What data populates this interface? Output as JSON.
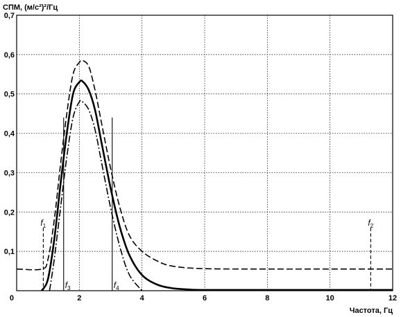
{
  "chart_data": {
    "type": "line",
    "title": "",
    "ylabel": "СПМ, (м/с²)²/Гц",
    "xlabel": "Частота, Гц",
    "xlim": [
      0,
      12
    ],
    "ylim": [
      0,
      0.7
    ],
    "grid": true,
    "x_ticks": [
      "0",
      "2",
      "4",
      "6",
      "8",
      "10",
      "12"
    ],
    "y_ticks": [
      "0,1",
      "0,2",
      "0,3",
      "0,4",
      "0,5",
      "0,6",
      "0,7"
    ],
    "series": [
      {
        "style": "dashed",
        "x": [
          0,
          0.8,
          1.0,
          1.2,
          1.4,
          1.6,
          1.8,
          2.0,
          2.1,
          2.3,
          2.5,
          2.7,
          3.0,
          3.3,
          3.6,
          4.0,
          4.5,
          5.0,
          6.0,
          8.0,
          10.0,
          12.0
        ],
        "y": [
          0.055,
          0.055,
          0.08,
          0.18,
          0.32,
          0.45,
          0.55,
          0.58,
          0.585,
          0.57,
          0.51,
          0.43,
          0.31,
          0.21,
          0.14,
          0.1,
          0.075,
          0.062,
          0.056,
          0.055,
          0.055,
          0.055
        ]
      },
      {
        "style": "solid",
        "x": [
          0.8,
          1.0,
          1.2,
          1.4,
          1.6,
          1.8,
          2.0,
          2.1,
          2.3,
          2.5,
          2.7,
          3.0,
          3.3,
          3.6,
          4.0,
          4.5,
          5.0,
          5.5,
          6.0,
          8.0,
          10.0,
          12.0
        ],
        "y": [
          0.0,
          0.03,
          0.13,
          0.27,
          0.4,
          0.5,
          0.53,
          0.532,
          0.51,
          0.46,
          0.38,
          0.26,
          0.16,
          0.09,
          0.04,
          0.015,
          0.006,
          0.003,
          0.002,
          0.002,
          0.002,
          0.002
        ]
      },
      {
        "style": "dash-dot",
        "x": [
          1.05,
          1.2,
          1.4,
          1.6,
          1.8,
          2.0,
          2.1,
          2.3,
          2.5,
          2.7,
          3.0,
          3.3,
          3.6,
          4.0
        ],
        "y": [
          0.0,
          0.08,
          0.21,
          0.34,
          0.44,
          0.48,
          0.48,
          0.46,
          0.41,
          0.33,
          0.21,
          0.11,
          0.04,
          0.0
        ]
      }
    ],
    "markers": [
      {
        "label": "f",
        "sub": "1",
        "x": 0.85,
        "y_top": 0.16,
        "style": "dashed"
      },
      {
        "label": "f",
        "sub": "3",
        "x": 1.5,
        "y_top": 0.44,
        "style": "solid"
      },
      {
        "label": "f",
        "sub": "4",
        "x": 3.05,
        "y_top": 0.44,
        "style": "solid"
      },
      {
        "label": "f",
        "sub": "2",
        "x": 11.3,
        "y_top": 0.16,
        "style": "dashed"
      }
    ]
  }
}
